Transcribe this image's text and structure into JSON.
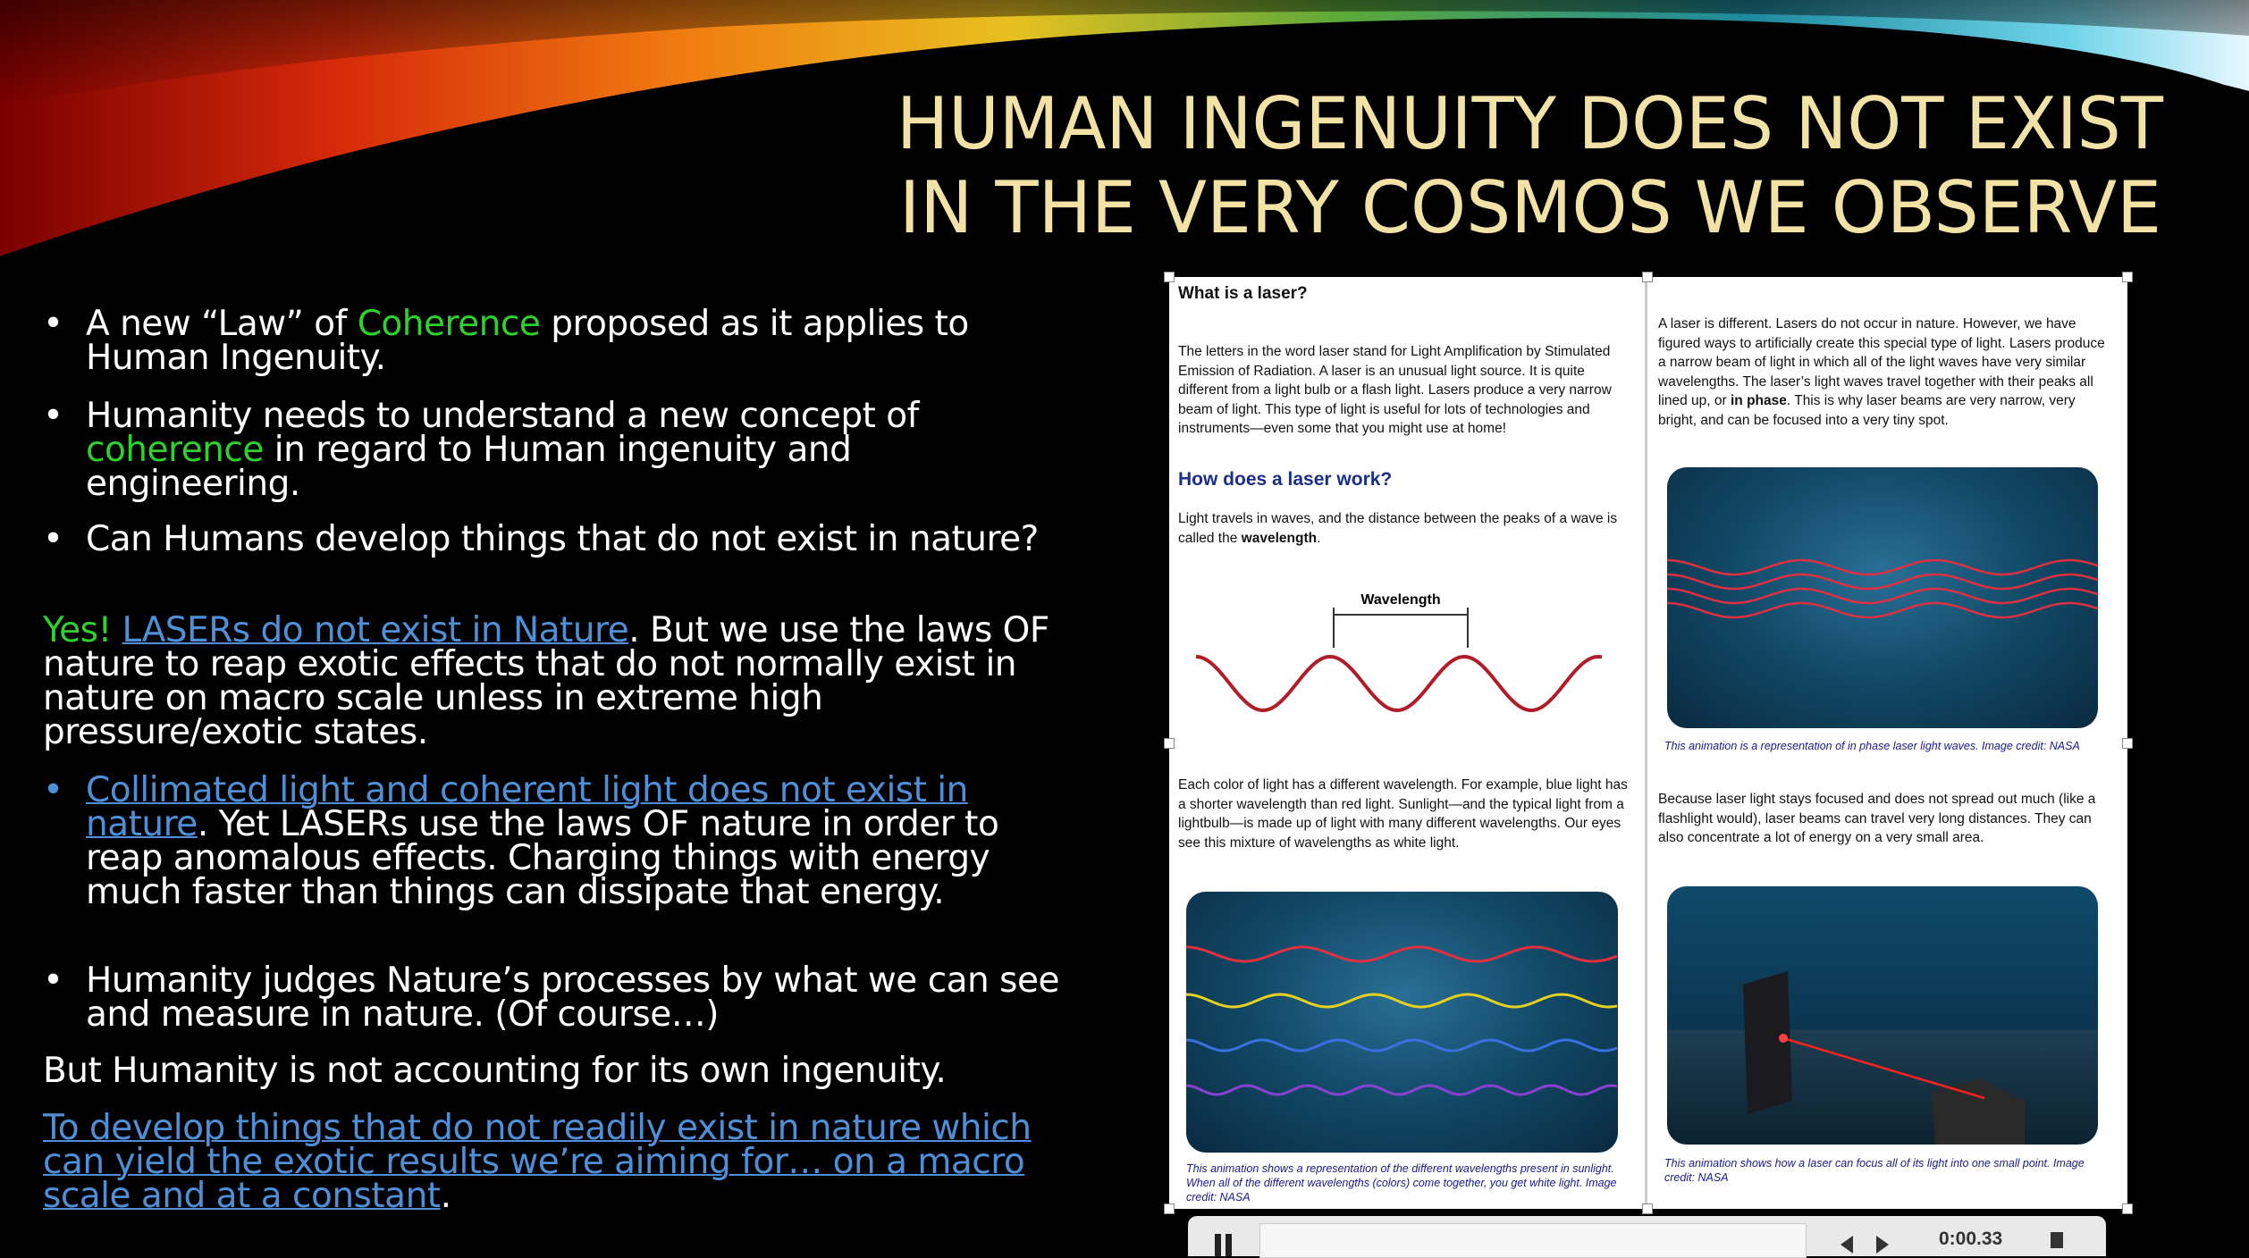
{
  "slide": {
    "title": [
      "HUMAN INGENUITY DOES NOT EXIST",
      "IN THE VERY COSMOS WE OBSERVE"
    ],
    "body": [
      [
        "A new “Law” of ",
        "Coherence",
        " proposed as it applies to Human Ingenuity."
      ],
      [
        "Humanity needs to understand a new concept of ",
        "coherence",
        " in regard to Human ingenuity and engineering."
      ],
      [
        "Can Humans develop things that do not exist in nature?"
      ],
      [
        "Yes! ",
        "LASERs do not exist in Nature",
        ". But we use the laws OF nature to reap exotic effects that do not normally exist in nature on macro scale unless in extreme high pressure/exotic states."
      ],
      [
        "Collimated light and coherent light does not exist in nature",
        ". Yet LASERs use the laws OF nature in order to reap anomalous effects. Charging things with energy much faster than things can dissipate that energy."
      ],
      [
        "Humanity judges Nature’s processes by what we can see and measure in nature. (Of course…)"
      ],
      [
        "But Humanity is not accounting for its own ingenuity."
      ],
      [
        "To develop things that do not readily exist in nature which can yield the exotic results we’re aiming for… on a macro scale and at a constant",
        "."
      ]
    ],
    "article": {
      "heading": "What is a laser?",
      "intro": "The letters in the word laser stand for Light Amplification by Stimulated Emission of Radiation. A laser is an unusual light source. It is quite different from a light bulb or a flash light. Lasers produce a very narrow beam of light. This type of light is useful for lots of technologies and instruments—even some that you might use at home!",
      "subheading": "How does a laser work?",
      "waves": [
        "Light travels in waves, and the distance between the peaks of a wave is called the ",
        "wavelength",
        "."
      ],
      "diagram_label": "Wavelength",
      "colors": "Each color of light has a different wavelength. For example, blue light has a shorter wavelength than red light. Sunlight—and the typical light from a lightbulb—is made up of light with many different wavelengths. Our eyes see this mixture of wavelengths as white light.",
      "caption_colors": "This animation shows a representation of the different wavelengths present in sunlight. When all of the different wavelengths (colors) come together, you get white light. Image credit: NASA",
      "laser": [
        "A laser is different. Lasers do not occur in nature. However, we have figured ways to artificially create this special type of light. Lasers produce a narrow beam of light in which all of the light waves have very similar wavelengths. The laser’s light waves travel together with their peaks all lined up, or ",
        "in phase",
        ". This is why laser beams are very narrow, very bright, and can be focused into a very tiny spot."
      ],
      "caption_phase": "This animation is a representation of in phase laser light waves. Image credit: NASA",
      "focus": "Because laser light stays focused and does not spread out much (like a flashlight would), laser beams can travel very long distances. They can also concentrate a lot of energy on a very small area.",
      "caption_focus": "This animation shows how a laser can focus all of its light into one small point. Image credit: NASA"
    },
    "player": {
      "time": "0:00.33"
    }
  }
}
